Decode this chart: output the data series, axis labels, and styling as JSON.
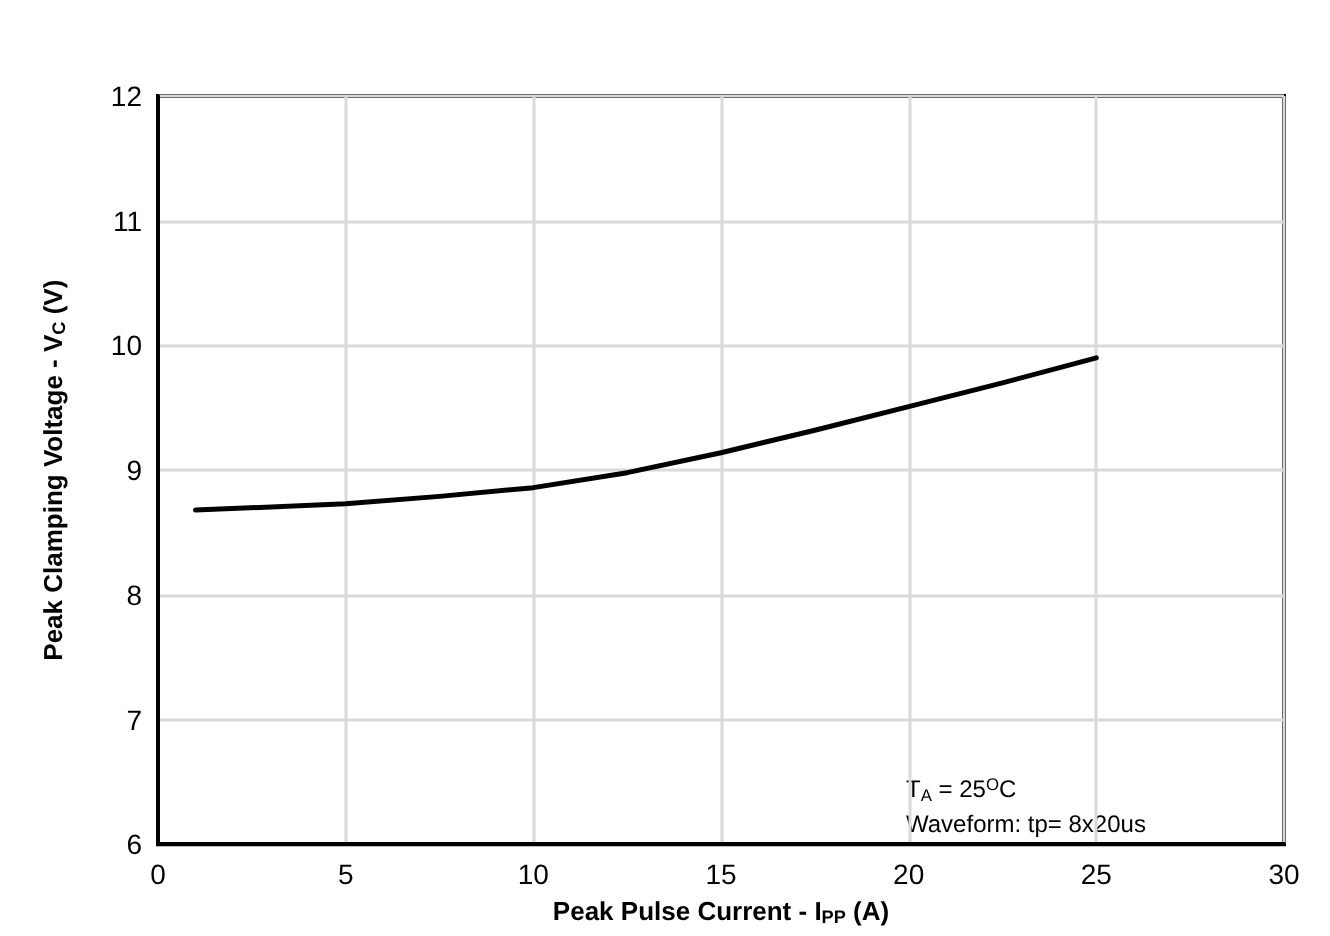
{
  "chart_data": {
    "type": "line",
    "xlabel": "Peak Pulse Current - I$_{PP}$ (A)",
    "ylabel": "Peak Clamping Voltage - V$_{C}$ (V)",
    "annotations": [
      "T$_{A}$ = 25$^{O}$C",
      "Waveform: tp= 8x20us"
    ],
    "series": [
      {
        "color": "#000000",
        "x": [
          1,
          5,
          7.5,
          10,
          12.5,
          15,
          17.5,
          20,
          22.5,
          25
        ],
        "values": [
          8.68,
          8.73,
          8.79,
          8.86,
          8.98,
          9.14,
          9.32,
          9.51,
          9.7,
          9.9
        ]
      }
    ],
    "xlim": [
      0,
      30
    ],
    "xticks": [
      0,
      5,
      10,
      15,
      20,
      25,
      30
    ],
    "ylim": [
      6,
      12
    ],
    "yticks": [
      6,
      7,
      8,
      9,
      10,
      11,
      12
    ],
    "grid": true,
    "marker": "none",
    "line_style": "solid"
  }
}
